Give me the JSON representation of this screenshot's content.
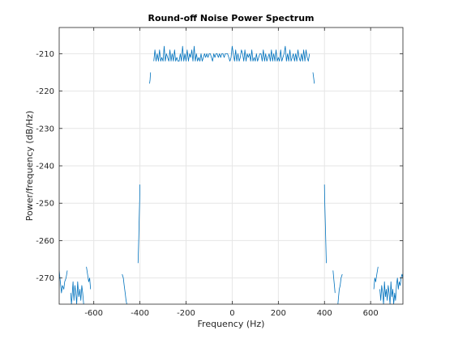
{
  "colors": {
    "series": "#0072bd",
    "grid": "#e6e6e6",
    "axis": "#262626",
    "background": "#ffffff"
  },
  "chart_data": {
    "type": "line",
    "title": "Round-off Noise Power Spectrum",
    "xlabel": "Frequency (Hz)",
    "ylabel": "Power/frequency (dB/Hz)",
    "xlim": [
      -750,
      740
    ],
    "ylim": [
      -277,
      -203
    ],
    "xticks": [
      -600,
      -400,
      -200,
      0,
      200,
      400,
      600
    ],
    "yticks": [
      -270,
      -260,
      -250,
      -240,
      -230,
      -220,
      -210
    ],
    "grid": true,
    "legend": "none",
    "series": [
      {
        "segments": [
          {
            "x": [
              -750,
              -745,
              -740,
              -736,
              -730,
              -726,
              -720,
              -715
            ],
            "y": [
              -268,
              -271,
              -274,
              -272,
              -273,
              -271,
              -270,
              -268
            ]
          },
          {
            "x": [
              -700,
              -697,
              -694,
              -690,
              -686,
              -682,
              -678,
              -674,
              -670,
              -665,
              -660,
              -656,
              -652,
              -648,
              -644
            ],
            "y": [
              -274,
              -277,
              -275,
              -271,
              -276,
              -272,
              -274,
              -277,
              -271,
              -275,
              -273,
              -276,
              -272,
              -274,
              -277
            ]
          },
          {
            "x": [
              -632,
              -627,
              -622,
              -618,
              -614
            ],
            "y": [
              -267,
              -269,
              -271,
              -270,
              -273
            ]
          },
          {
            "x": [
              -477,
              -472,
              -468,
              -464,
              -460,
              -457
            ],
            "y": [
              -269,
              -270,
              -272,
              -274,
              -276,
              -277
            ]
          },
          {
            "x": [
              -408,
              -405,
              -403,
              -401,
              -400
            ],
            "y": [
              -266,
              -259,
              -254,
              -249,
              -245
            ]
          },
          {
            "x": [
              -358,
              -356,
              -354
            ],
            "y": [
              -218,
              -217,
              -215
            ]
          },
          {
            "x": [
              -340,
              -335,
              -330,
              -325,
              -320,
              -315,
              -310,
              -305,
              -300,
              -295,
              -290,
              -285,
              -280,
              -275,
              -270,
              -265,
              -260,
              -255,
              -250,
              -245,
              -240,
              -235,
              -230,
              -225,
              -220,
              -215,
              -210,
              -205,
              -200,
              -195,
              -190,
              -185,
              -180,
              -175,
              -170,
              -165,
              -160,
              -155,
              -150,
              -145,
              -140,
              -135,
              -130,
              -125,
              -120,
              -115,
              -110,
              -105,
              -100,
              -95,
              -90,
              -85,
              -80,
              -75,
              -70,
              -65,
              -60,
              -55,
              -50,
              -45,
              -40,
              -35,
              -30,
              -25,
              -20,
              -15,
              -10,
              -5,
              0,
              5,
              10,
              15,
              20,
              25,
              30,
              35,
              40,
              45,
              50,
              55,
              60,
              65,
              70,
              75,
              80,
              85,
              90,
              95,
              100,
              105,
              110,
              115,
              120,
              125,
              130,
              135,
              140,
              145,
              150,
              155,
              160,
              165,
              170,
              175,
              180,
              185,
              190,
              195,
              200,
              205,
              210,
              215,
              220,
              225,
              230,
              235,
              240,
              245,
              250,
              255,
              260,
              265,
              270,
              275,
              280,
              285,
              290,
              295,
              300,
              305,
              310,
              315,
              320,
              325,
              330,
              335
            ],
            "y": [
              -212,
              -209,
              -212,
              -210,
              -212,
              -209,
              -212,
              -211,
              -212,
              -208,
              -212,
              -210,
              -211,
              -212,
              -209,
              -212,
              -210,
              -212,
              -209,
              -212,
              -211,
              -212,
              -212,
              -210,
              -212,
              -208,
              -212,
              -210,
              -212,
              -209,
              -212,
              -210,
              -211,
              -209,
              -212,
              -208,
              -212,
              -210,
              -212,
              -211,
              -212,
              -210,
              -212,
              -211,
              -210,
              -211,
              -210,
              -211,
              -210,
              -210,
              -211,
              -212,
              -210,
              -211,
              -210,
              -210,
              -211,
              -210,
              -211,
              -210,
              -210,
              -211,
              -210,
              -210,
              -210,
              -211,
              -212,
              -211,
              -208,
              -210,
              -212,
              -209,
              -212,
              -210,
              -212,
              -211,
              -209,
              -210,
              -212,
              -209,
              -212,
              -210,
              -211,
              -210,
              -212,
              -209,
              -212,
              -211,
              -212,
              -210,
              -212,
              -211,
              -210,
              -210,
              -212,
              -209,
              -212,
              -210,
              -212,
              -211,
              -210,
              -212,
              -209,
              -212,
              -210,
              -212,
              -209,
              -212,
              -211,
              -212,
              -209,
              -212,
              -211,
              -210,
              -208,
              -212,
              -210,
              -212,
              -209,
              -212,
              -211,
              -210,
              -212,
              -210,
              -212,
              -209,
              -211,
              -212,
              -210,
              -212,
              -209,
              -212,
              -209,
              -211,
              -212,
              -210
            ]
          },
          {
            "x": [
              350,
              352,
              354,
              356
            ],
            "y": [
              -215,
              -216,
              -217,
              -218
            ]
          },
          {
            "x": [
              400,
              401,
              403,
              405,
              408
            ],
            "y": [
              -245,
              -249,
              -254,
              -259,
              -266
            ]
          },
          {
            "x": [
              437,
              440,
              443,
              446
            ],
            "y": [
              -268,
              -270,
              -272,
              -274
            ]
          },
          {
            "x": [
              458,
              461,
              464,
              468,
              472,
              477
            ],
            "y": [
              -277,
              -275,
              -273,
              -272,
              -270,
              -269
            ]
          },
          {
            "x": [
              614,
              618,
              622,
              627,
              632
            ],
            "y": [
              -273,
              -270,
              -271,
              -269,
              -267
            ]
          },
          {
            "x": [
              640,
              644,
              648,
              652,
              656,
              660,
              664,
              668,
              672,
              676,
              680,
              684,
              688,
              692,
              696,
              700,
              704,
              708,
              712,
              716,
              720,
              724,
              728,
              732,
              736,
              740
            ],
            "y": [
              -273,
              -276,
              -272,
              -274,
              -277,
              -271,
              -275,
              -273,
              -276,
              -272,
              -274,
              -277,
              -271,
              -275,
              -273,
              -277,
              -274,
              -276,
              -272,
              -270,
              -273,
              -271,
              -272,
              -270,
              -269,
              -270
            ]
          }
        ]
      }
    ]
  }
}
